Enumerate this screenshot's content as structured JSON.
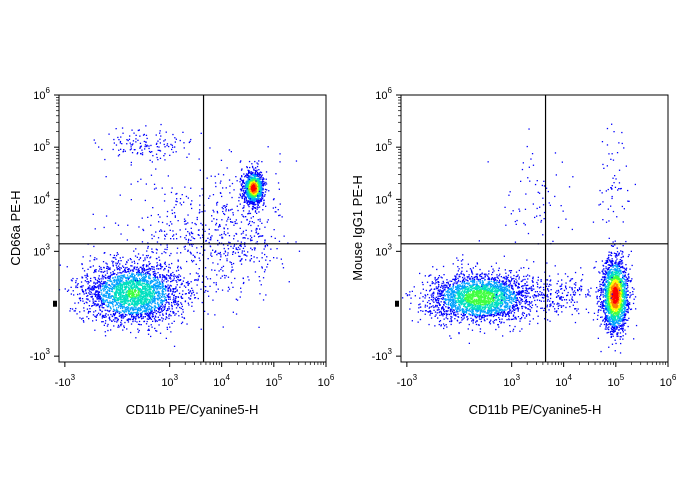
{
  "chart_data": [
    {
      "type": "scatter",
      "title": "",
      "xlabel": "CD11b PE/Cyanine5-H",
      "ylabel": "CD66a PE-H",
      "x_scale": "biexponential",
      "y_scale": "biexponential",
      "xlim": [
        -1300,
        1000000
      ],
      "ylim": [
        -1300,
        1000000
      ],
      "x_ticks": [
        "-10^3",
        "10^3",
        "10^4",
        "10^5",
        "10^6"
      ],
      "y_ticks": [
        "-10^3",
        "10^3",
        "10^4",
        "10^5",
        "10^6"
      ],
      "quadrant_gates": {
        "x": 4500,
        "y": 1400
      },
      "populations": [
        {
          "x_center": 150,
          "y_center": 100,
          "density": "high",
          "spread": "wide"
        },
        {
          "x_center": 40000,
          "y_center": 17000,
          "density": "very high",
          "spread": "compact"
        },
        {
          "x_center": 300,
          "y_center": 120000,
          "density": "low",
          "spread": "sparse"
        }
      ]
    },
    {
      "type": "scatter",
      "title": "",
      "xlabel": "CD11b PE/Cyanine5-H",
      "ylabel": "Mouse IgG1 PE-H",
      "x_scale": "biexponential",
      "y_scale": "biexponential",
      "xlim": [
        -1300,
        1000000
      ],
      "ylim": [
        -1300,
        1000000
      ],
      "x_ticks": [
        "-10^3",
        "10^3",
        "10^4",
        "10^5",
        "10^6"
      ],
      "y_ticks": [
        "-10^3",
        "10^3",
        "10^4",
        "10^5",
        "10^6"
      ],
      "quadrant_gates": {
        "x": 4500,
        "y": 1400
      },
      "populations": [
        {
          "x_center": 200,
          "y_center": 60,
          "density": "high",
          "spread": "wide"
        },
        {
          "x_center": 95000,
          "y_center": 80,
          "density": "very high",
          "spread": "tall"
        }
      ]
    }
  ],
  "colors": {
    "density_scale": [
      "#0000ff",
      "#00a0ff",
      "#00e0c0",
      "#40ff40",
      "#ffff00",
      "#ff8000",
      "#ff0000"
    ],
    "axis": "#000000",
    "gate_lines": "#000000"
  }
}
